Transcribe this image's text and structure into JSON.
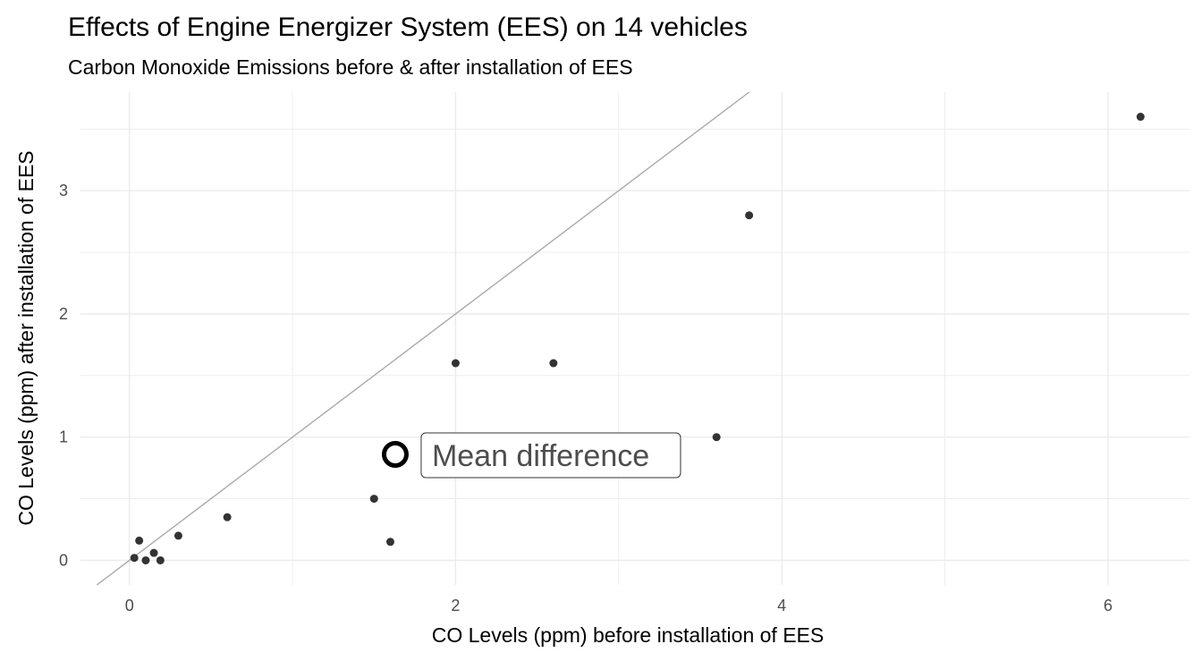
{
  "chart_data": {
    "type": "scatter",
    "title": "Effects of Engine Energizer System (EES) on 14 vehicles",
    "subtitle": "Carbon Monoxide Emissions before & after installation of EES",
    "xlabel": "CO Levels (ppm) before installation of EES",
    "ylabel": "CO Levels (ppm) after installation of EES",
    "xlim": [
      -0.3,
      6.5
    ],
    "ylim": [
      -0.2,
      3.8
    ],
    "x_ticks": [
      0,
      2,
      4,
      6
    ],
    "x_tick_labels": [
      "0",
      "2",
      "4",
      "6"
    ],
    "y_ticks": [
      0,
      1,
      2,
      3
    ],
    "y_tick_labels": [
      "0",
      "1",
      "2",
      "3"
    ],
    "grid": true,
    "reference_line": {
      "slope": 1,
      "intercept": 0,
      "color": "#aaaaaa"
    },
    "point_color": "#333333",
    "points": [
      {
        "x": 0.03,
        "y": 0.02
      },
      {
        "x": 0.06,
        "y": 0.16
      },
      {
        "x": 0.1,
        "y": 0.0
      },
      {
        "x": 0.15,
        "y": 0.06
      },
      {
        "x": 0.19,
        "y": 0.0
      },
      {
        "x": 0.3,
        "y": 0.2
      },
      {
        "x": 0.6,
        "y": 0.35
      },
      {
        "x": 1.5,
        "y": 0.5
      },
      {
        "x": 1.6,
        "y": 0.15
      },
      {
        "x": 2.0,
        "y": 1.6
      },
      {
        "x": 2.6,
        "y": 1.6
      },
      {
        "x": 3.6,
        "y": 1.0
      },
      {
        "x": 3.8,
        "y": 2.8
      },
      {
        "x": 6.2,
        "y": 3.6
      }
    ],
    "mean_point": {
      "x": 1.63,
      "y": 0.86
    },
    "annotation": "Mean difference"
  }
}
